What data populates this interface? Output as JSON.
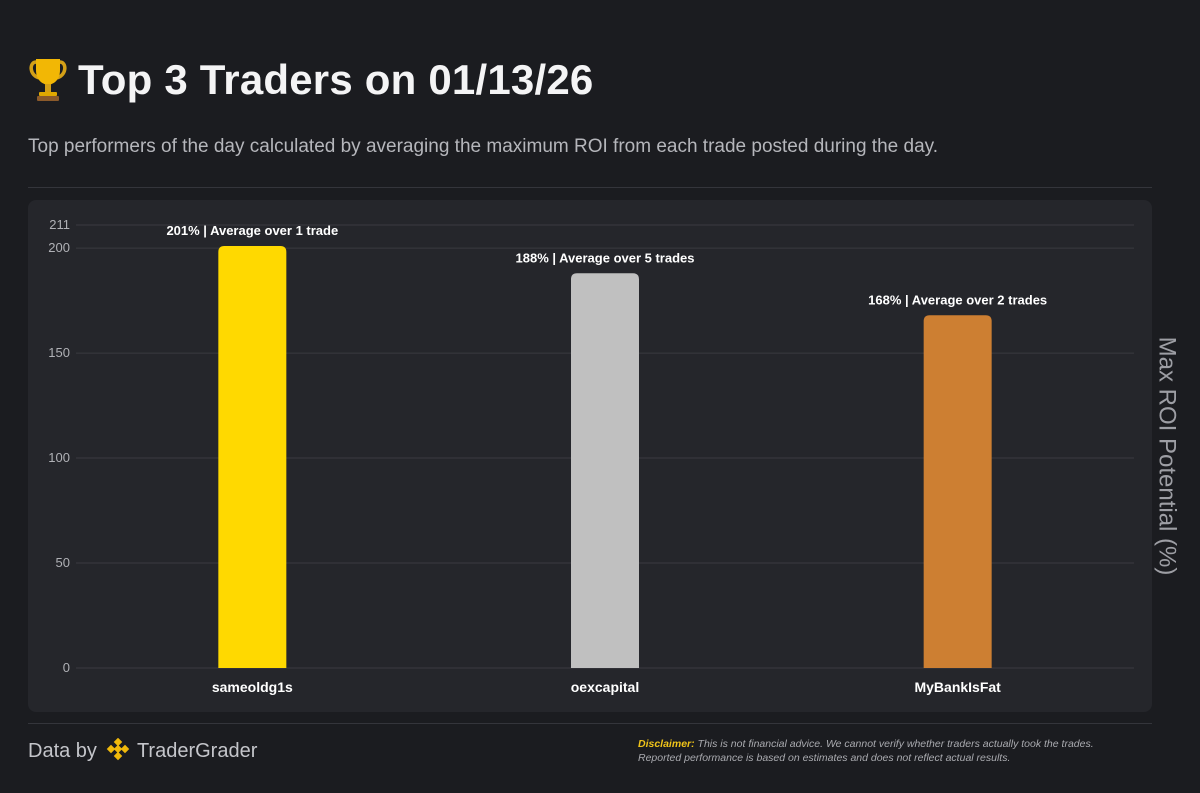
{
  "header": {
    "title": "Top 3 Traders on 01/13/26",
    "subtitle": "Top performers of the day calculated by averaging the maximum ROI from each trade posted during the day.",
    "title_icon": "trophy-icon"
  },
  "chart_data": {
    "type": "bar",
    "title": "",
    "xlabel": "",
    "ylabel": "Max ROI Potential (%)",
    "ylim": [
      0,
      211
    ],
    "yticks": [
      0,
      50,
      100,
      150,
      200,
      211
    ],
    "ytick_labels": [
      "0",
      "50",
      "100",
      "150",
      "200",
      "211"
    ],
    "grid": true,
    "categories": [
      "sameoldg1s",
      "oexcapital",
      "MyBankIsFat"
    ],
    "values": [
      201,
      188,
      168
    ],
    "labels": [
      "201% | Average over 1 trade",
      "188% | Average over 5 trades",
      "168% | Average over 2 trades"
    ],
    "colors": [
      "#ffd900",
      "#c0c0c0",
      "#cd7f32"
    ]
  },
  "footer": {
    "data_by": "Data by",
    "brand": "TraderGrader",
    "brand_icon": "tradergrader-logo-icon",
    "disclaimer_label": "Disclaimer:",
    "disclaimer_text": "This is not financial advice. We cannot verify whether traders actually took the trades.",
    "disclaimer_text2": "Reported performance is based on estimates and does not reflect actual results."
  }
}
